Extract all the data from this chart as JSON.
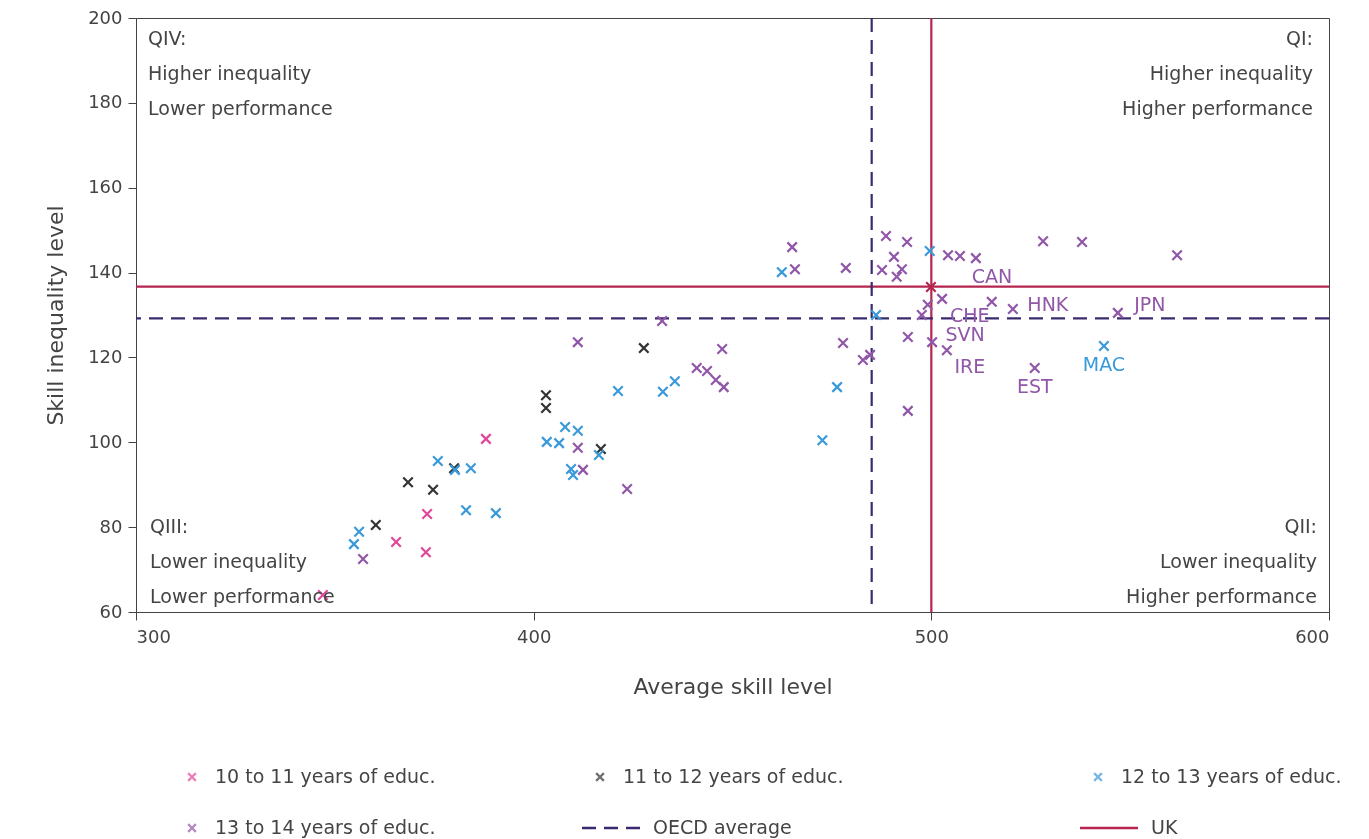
{
  "chart_data": {
    "type": "scatter",
    "xlabel": "Average skill level",
    "ylabel": "Skill inequality level",
    "xlim": [
      300,
      600
    ],
    "xticks": [
      300,
      400,
      500,
      600
    ],
    "ylim": [
      60,
      200
    ],
    "yticks": [
      60,
      80,
      100,
      120,
      140,
      160,
      180,
      200
    ],
    "grid": false,
    "legend": "bottom",
    "marker": "cross",
    "series": [
      {
        "name": "10 to 11 years of educ.",
        "color": "#e0489a",
        "x": [
          388.0,
          373.2,
          365.4,
          372.9,
          347.0
        ],
        "values": [
          100.8,
          83.1,
          76.5,
          74.1,
          64.0
        ]
      },
      {
        "name": "11 to 12 years of educ.",
        "color": "#333333",
        "x": [
          427.7,
          403.1,
          403.1,
          380.0,
          368.4,
          374.7,
          360.3,
          416.9
        ],
        "values": [
          122.2,
          111.1,
          108.1,
          93.9,
          90.6,
          88.8,
          80.5,
          98.4
        ]
      },
      {
        "name": "12 to 13 years of educ.",
        "color": "#3a9ad9",
        "x": [
          407.9,
          411.1,
          403.3,
          406.4,
          375.9,
          380.2,
          384.2,
          409.4,
          409.9,
          416.4,
          383.0,
          390.5,
          356.1,
          354.8,
          421.2,
          432.5,
          435.5,
          462.4,
          476.3,
          472.6,
          486.1,
          499.6,
          543.4
        ],
        "values": [
          103.6,
          102.7,
          100.1,
          99.8,
          95.6,
          93.5,
          93.9,
          93.7,
          92.3,
          97.0,
          84.0,
          83.3,
          78.9,
          76.0,
          112.1,
          111.9,
          114.4,
          140.1,
          113.0,
          100.5,
          130.0,
          145.1,
          122.7
        ]
      },
      {
        "name": "13 to 14 years of educ.",
        "color": "#9057a8",
        "x": [
          357.1,
          411.1,
          412.4,
          423.5,
          432.3,
          411.1,
          443.6,
          445.8,
          447.4,
          447.8,
          441.0,
          465.0,
          465.7,
          478.5,
          488.6,
          493.9,
          490.6,
          487.6,
          492.6,
          491.3,
          504.2,
          507.2,
          511.2,
          499.1,
          502.7,
          497.6,
          477.8,
          494.1,
          500.2,
          503.9,
          482.8,
          484.6,
          494.1,
          515.2,
          520.5,
          528.1,
          537.9,
          561.8,
          546.9,
          526.0
        ],
        "values": [
          72.5,
          98.7,
          93.5,
          89.0,
          128.6,
          123.6,
          116.8,
          114.7,
          122.0,
          113.0,
          117.5,
          146.0,
          140.8,
          141.1,
          148.6,
          147.2,
          143.7,
          140.6,
          140.8,
          139.0,
          144.1,
          143.9,
          143.4,
          132.4,
          133.8,
          130.0,
          123.4,
          124.8,
          123.6,
          121.7,
          119.4,
          120.6,
          107.4,
          133.1,
          131.4,
          147.4,
          147.2,
          144.1,
          130.5,
          117.5
        ]
      },
      {
        "color": "#b5254f",
        "x": [
          499.9
        ],
        "values": [
          136.6
        ]
      }
    ],
    "ref_lines": [
      {
        "axis": "x",
        "value": 485,
        "label": "OECD average",
        "color": "#3b2a6e",
        "line_style": "dashed"
      },
      {
        "axis": "y",
        "value": 129.2,
        "color": "#3b2a6e",
        "line_style": "dashed"
      },
      {
        "axis": "x",
        "value": 500,
        "label": "UK",
        "color": "#b5254f",
        "line_style": "solid"
      },
      {
        "axis": "y",
        "value": 136.7,
        "color": "#b5254f",
        "line_style": "solid"
      }
    ],
    "annotations": [
      "QIV:\nHigher inequality\nLower performance",
      "QI:\nHigher inequality\nHigher performance",
      "QIII:\nLower inequality\nLower performance",
      "QII:\nLower inequality\nHigher performance",
      {
        "text": "CAN",
        "x": 502.7,
        "y": 133.8
      },
      {
        "text": "CHE",
        "x": 499.1,
        "y": 132.4
      },
      {
        "text": "SVN",
        "x": 500.2,
        "y": 123.6
      },
      {
        "text": "IRE",
        "x": 503.9,
        "y": 121.7
      },
      {
        "text": "HNK",
        "x": 520.5,
        "y": 131.4
      },
      {
        "text": "JPN",
        "x": 546.9,
        "y": 130.5
      },
      {
        "text": "EST",
        "x": 526.0,
        "y": 117.5
      },
      {
        "text": "MAC",
        "x": 543.4,
        "y": 122.7
      }
    ]
  }
}
